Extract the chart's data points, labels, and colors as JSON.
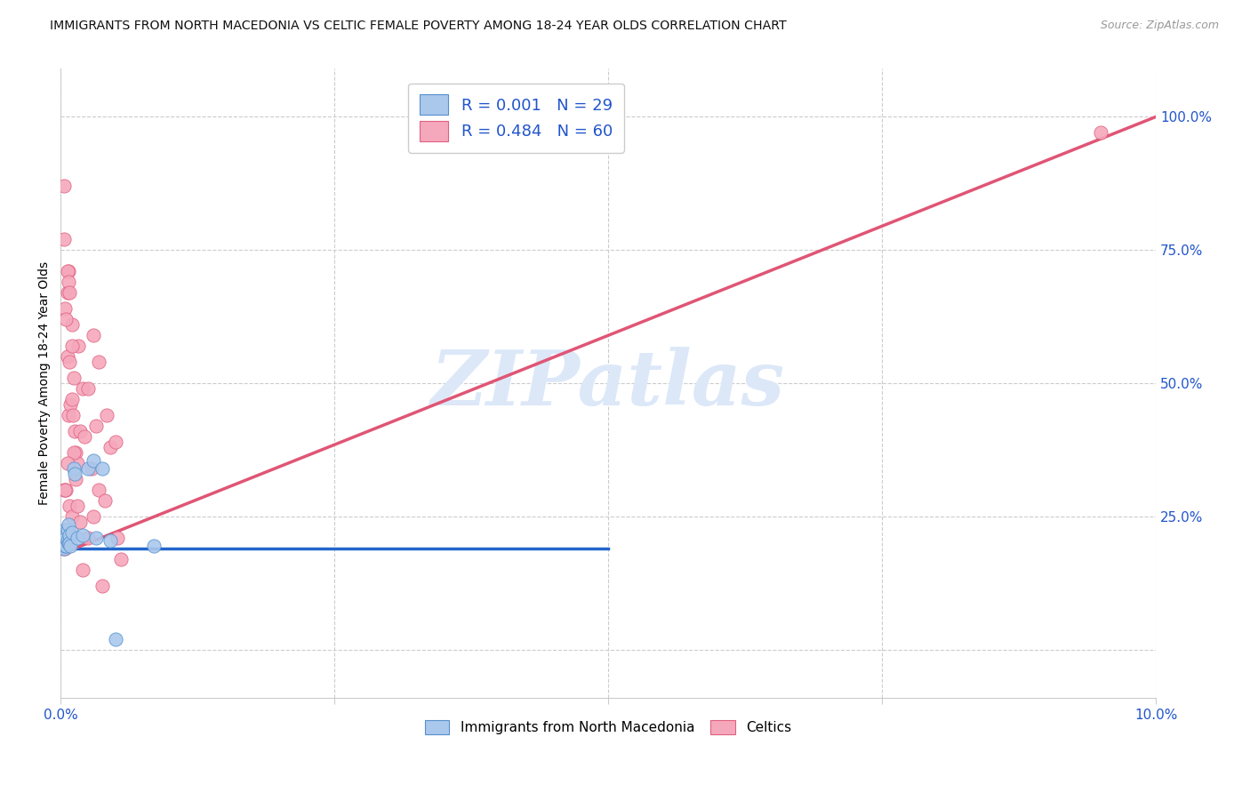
{
  "title": "IMMIGRANTS FROM NORTH MACEDONIA VS CELTIC FEMALE POVERTY AMONG 18-24 YEAR OLDS CORRELATION CHART",
  "source": "Source: ZipAtlas.com",
  "ylabel": "Female Poverty Among 18-24 Year Olds",
  "legend_blue_label": "R = 0.001   N = 29",
  "legend_pink_label": "R = 0.484   N = 60",
  "bottom_legend_blue": "Immigrants from North Macedonia",
  "bottom_legend_pink": "Celtics",
  "blue_face_color": "#aac8ec",
  "pink_face_color": "#f5a8bc",
  "blue_edge_color": "#5590cc",
  "pink_edge_color": "#e06080",
  "blue_line_color": "#2266cc",
  "pink_line_color": "#e05575",
  "legend_text_color": "#2255cc",
  "watermark_color": "#dce8f8",
  "grid_color": "#cccccc",
  "bg_color": "#ffffff",
  "title_color": "#111111",
  "source_color": "#999999",
  "xmin": 0.0,
  "xmax": 0.1,
  "ymin": -0.09,
  "ymax": 1.09,
  "right_ytick_vals": [
    0.0,
    0.25,
    0.5,
    0.75,
    1.0
  ],
  "right_ytick_labels": [
    "",
    "25.0%",
    "50.0%",
    "75.0%",
    "100.0%"
  ],
  "xtick_vals": [
    0.0,
    0.025,
    0.05,
    0.075,
    0.1
  ],
  "xtick_labels": [
    "0.0%",
    "",
    "",
    "",
    "10.0%"
  ],
  "marker_size": 120,
  "blue_line_x": [
    0.0,
    0.05
  ],
  "blue_line_y": [
    0.19,
    0.19
  ],
  "pink_line_x": [
    0.0,
    0.1
  ],
  "pink_line_y": [
    0.18,
    1.0
  ],
  "blue_x": [
    0.0002,
    0.0002,
    0.0003,
    0.0003,
    0.0003,
    0.0004,
    0.0004,
    0.0005,
    0.0005,
    0.0005,
    0.0006,
    0.0006,
    0.0007,
    0.0007,
    0.0008,
    0.0008,
    0.0009,
    0.001,
    0.0012,
    0.0013,
    0.0015,
    0.002,
    0.0025,
    0.003,
    0.0032,
    0.0038,
    0.0045,
    0.005,
    0.0085
  ],
  "blue_y": [
    0.195,
    0.215,
    0.2,
    0.215,
    0.19,
    0.225,
    0.195,
    0.215,
    0.195,
    0.21,
    0.225,
    0.205,
    0.235,
    0.2,
    0.215,
    0.2,
    0.195,
    0.22,
    0.34,
    0.33,
    0.21,
    0.215,
    0.34,
    0.355,
    0.21,
    0.34,
    0.205,
    0.02,
    0.195
  ],
  "pink_x": [
    0.0001,
    0.0002,
    0.0003,
    0.0003,
    0.0003,
    0.0004,
    0.0004,
    0.0005,
    0.0005,
    0.0006,
    0.0006,
    0.0006,
    0.0007,
    0.0007,
    0.0008,
    0.0008,
    0.0009,
    0.001,
    0.001,
    0.0011,
    0.0012,
    0.0013,
    0.0014,
    0.0015,
    0.0016,
    0.0018,
    0.002,
    0.0022,
    0.0025,
    0.0028,
    0.003,
    0.0032,
    0.0035,
    0.0038,
    0.004,
    0.0042,
    0.0045,
    0.005,
    0.0052,
    0.0055,
    0.0003,
    0.0005,
    0.0006,
    0.0007,
    0.0008,
    0.001,
    0.0012,
    0.0015,
    0.002,
    0.003,
    0.0002,
    0.0004,
    0.0006,
    0.0008,
    0.001,
    0.0014,
    0.0018,
    0.0025,
    0.0035,
    0.095
  ],
  "pink_y": [
    0.2,
    0.19,
    0.87,
    0.3,
    0.2,
    0.64,
    0.19,
    0.3,
    0.2,
    0.67,
    0.55,
    0.22,
    0.71,
    0.44,
    0.54,
    0.27,
    0.46,
    0.61,
    0.25,
    0.44,
    0.51,
    0.41,
    0.37,
    0.35,
    0.57,
    0.41,
    0.49,
    0.4,
    0.21,
    0.34,
    0.59,
    0.42,
    0.3,
    0.12,
    0.28,
    0.44,
    0.38,
    0.39,
    0.21,
    0.17,
    0.77,
    0.62,
    0.71,
    0.69,
    0.67,
    0.47,
    0.37,
    0.27,
    0.15,
    0.25,
    0.22,
    0.3,
    0.35,
    0.22,
    0.57,
    0.32,
    0.24,
    0.49,
    0.54,
    0.97
  ]
}
